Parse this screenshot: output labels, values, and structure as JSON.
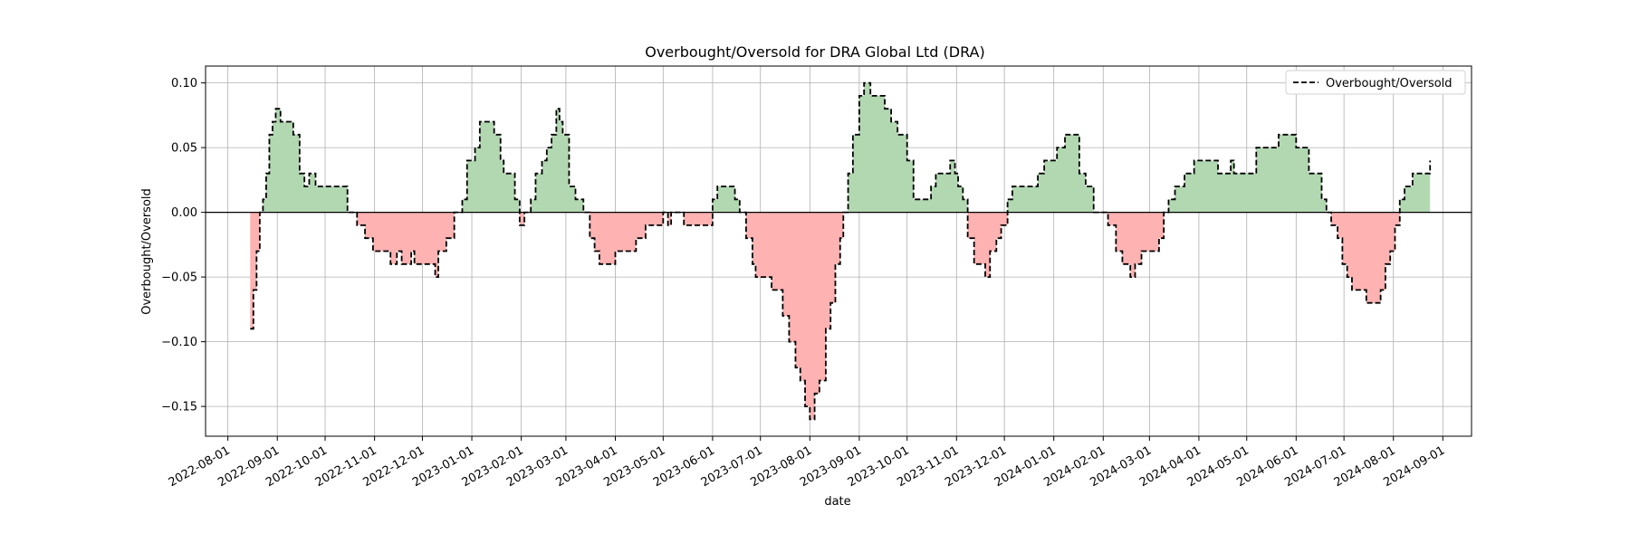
{
  "chart_data": {
    "type": "area",
    "title": "Overbought/Oversold for DRA Global Ltd (DRA)",
    "xlabel": "date",
    "ylabel": "Overbought/Oversold",
    "xlim": [
      "2022-07-18",
      "2024-09-19"
    ],
    "ylim": [
      -0.173,
      0.113
    ],
    "x_ticks": [
      "2022-08-01",
      "2022-09-01",
      "2022-10-01",
      "2022-11-01",
      "2022-12-01",
      "2023-01-01",
      "2023-02-01",
      "2023-03-01",
      "2023-04-01",
      "2023-05-01",
      "2023-06-01",
      "2023-07-01",
      "2023-08-01",
      "2023-09-01",
      "2023-10-01",
      "2023-11-01",
      "2023-12-01",
      "2024-01-01",
      "2024-02-01",
      "2024-03-01",
      "2024-04-01",
      "2024-05-01",
      "2024-06-01",
      "2024-07-01",
      "2024-08-01",
      "2024-09-01"
    ],
    "y_ticks": [
      -0.15,
      -0.1,
      -0.05,
      0.0,
      0.05,
      0.1
    ],
    "y_tick_labels": [
      "−0.15",
      "−0.10",
      "−0.05",
      "0.00",
      "0.05",
      "0.10"
    ],
    "grid": true,
    "legend": {
      "position": "top-right",
      "entries": [
        "Overbought/Oversold"
      ]
    },
    "colors": {
      "line": "#000000",
      "positive_fill": "#b2d8b2",
      "negative_fill": "#ffb2b2",
      "zero_line": "#000000",
      "grid": "#b0b0b0"
    },
    "series": [
      {
        "name": "Overbought/Oversold",
        "style": "dashed",
        "points": [
          [
            "2022-08-15",
            -0.09
          ],
          [
            "2022-08-17",
            -0.06
          ],
          [
            "2022-08-19",
            -0.03
          ],
          [
            "2022-08-21",
            0.0
          ],
          [
            "2022-08-23",
            0.01
          ],
          [
            "2022-08-25",
            0.03
          ],
          [
            "2022-08-27",
            0.06
          ],
          [
            "2022-08-29",
            0.07
          ],
          [
            "2022-08-31",
            0.08
          ],
          [
            "2022-09-03",
            0.07
          ],
          [
            "2022-09-07",
            0.07
          ],
          [
            "2022-09-11",
            0.06
          ],
          [
            "2022-09-15",
            0.03
          ],
          [
            "2022-09-18",
            0.02
          ],
          [
            "2022-09-21",
            0.03
          ],
          [
            "2022-09-25",
            0.02
          ],
          [
            "2022-10-01",
            0.02
          ],
          [
            "2022-10-10",
            0.02
          ],
          [
            "2022-10-13",
            0.02
          ],
          [
            "2022-10-15",
            0.0
          ],
          [
            "2022-10-19",
            0.0
          ],
          [
            "2022-10-21",
            -0.01
          ],
          [
            "2022-10-26",
            -0.02
          ],
          [
            "2022-10-31",
            -0.03
          ],
          [
            "2022-11-08",
            -0.03
          ],
          [
            "2022-11-11",
            -0.04
          ],
          [
            "2022-11-15",
            -0.03
          ],
          [
            "2022-11-18",
            -0.04
          ],
          [
            "2022-11-24",
            -0.03
          ],
          [
            "2022-11-26",
            -0.04
          ],
          [
            "2022-12-01",
            -0.04
          ],
          [
            "2022-12-06",
            -0.04
          ],
          [
            "2022-12-09",
            -0.05
          ],
          [
            "2022-12-11",
            -0.03
          ],
          [
            "2022-12-16",
            -0.02
          ],
          [
            "2022-12-21",
            0.0
          ],
          [
            "2022-12-26",
            0.01
          ],
          [
            "2022-12-29",
            0.04
          ],
          [
            "2023-01-03",
            0.05
          ],
          [
            "2023-01-06",
            0.07
          ],
          [
            "2023-01-12",
            0.07
          ],
          [
            "2023-01-15",
            0.06
          ],
          [
            "2023-01-19",
            0.04
          ],
          [
            "2023-01-21",
            0.03
          ],
          [
            "2023-01-24",
            0.03
          ],
          [
            "2023-01-28",
            0.01
          ],
          [
            "2023-01-31",
            -0.01
          ],
          [
            "2023-02-03",
            0.0
          ],
          [
            "2023-02-07",
            0.01
          ],
          [
            "2023-02-10",
            0.03
          ],
          [
            "2023-02-14",
            0.04
          ],
          [
            "2023-02-17",
            0.05
          ],
          [
            "2023-02-20",
            0.06
          ],
          [
            "2023-02-23",
            0.08
          ],
          [
            "2023-02-25",
            0.07
          ],
          [
            "2023-02-27",
            0.06
          ],
          [
            "2023-03-03",
            0.02
          ],
          [
            "2023-03-07",
            0.01
          ],
          [
            "2023-03-10",
            0.01
          ],
          [
            "2023-03-12",
            0.0
          ],
          [
            "2023-03-16",
            -0.02
          ],
          [
            "2023-03-19",
            -0.03
          ],
          [
            "2023-03-22",
            -0.04
          ],
          [
            "2023-03-28",
            -0.04
          ],
          [
            "2023-04-01",
            -0.03
          ],
          [
            "2023-04-11",
            -0.03
          ],
          [
            "2023-04-14",
            -0.02
          ],
          [
            "2023-04-20",
            -0.01
          ],
          [
            "2023-04-27",
            -0.01
          ],
          [
            "2023-05-01",
            0.0
          ],
          [
            "2023-05-04",
            -0.01
          ],
          [
            "2023-05-06",
            0.0
          ],
          [
            "2023-05-09",
            0.0
          ],
          [
            "2023-05-12",
            0.0
          ],
          [
            "2023-05-14",
            -0.01
          ],
          [
            "2023-05-30",
            -0.01
          ],
          [
            "2023-06-01",
            0.01
          ],
          [
            "2023-06-04",
            0.02
          ],
          [
            "2023-06-12",
            0.02
          ],
          [
            "2023-06-15",
            0.01
          ],
          [
            "2023-06-18",
            0.0
          ],
          [
            "2023-06-22",
            -0.02
          ],
          [
            "2023-06-26",
            -0.04
          ],
          [
            "2023-06-28",
            -0.05
          ],
          [
            "2023-07-05",
            -0.05
          ],
          [
            "2023-07-08",
            -0.06
          ],
          [
            "2023-07-12",
            -0.06
          ],
          [
            "2023-07-15",
            -0.08
          ],
          [
            "2023-07-19",
            -0.1
          ],
          [
            "2023-07-23",
            -0.12
          ],
          [
            "2023-07-26",
            -0.13
          ],
          [
            "2023-07-29",
            -0.15
          ],
          [
            "2023-08-01",
            -0.16
          ],
          [
            "2023-08-04",
            -0.14
          ],
          [
            "2023-08-07",
            -0.13
          ],
          [
            "2023-08-11",
            -0.09
          ],
          [
            "2023-08-14",
            -0.07
          ],
          [
            "2023-08-17",
            -0.04
          ],
          [
            "2023-08-20",
            -0.02
          ],
          [
            "2023-08-22",
            0.0
          ],
          [
            "2023-08-25",
            0.03
          ],
          [
            "2023-08-28",
            0.06
          ],
          [
            "2023-09-01",
            0.09
          ],
          [
            "2023-09-04",
            0.1
          ],
          [
            "2023-09-08",
            0.09
          ],
          [
            "2023-09-14",
            0.09
          ],
          [
            "2023-09-17",
            0.08
          ],
          [
            "2023-09-21",
            0.07
          ],
          [
            "2023-09-25",
            0.06
          ],
          [
            "2023-10-01",
            0.04
          ],
          [
            "2023-10-05",
            0.01
          ],
          [
            "2023-10-13",
            0.01
          ],
          [
            "2023-10-16",
            0.02
          ],
          [
            "2023-10-19",
            0.03
          ],
          [
            "2023-10-25",
            0.03
          ],
          [
            "2023-10-28",
            0.04
          ],
          [
            "2023-10-31",
            0.03
          ],
          [
            "2023-11-02",
            0.02
          ],
          [
            "2023-11-05",
            0.01
          ],
          [
            "2023-11-08",
            -0.02
          ],
          [
            "2023-11-12",
            -0.04
          ],
          [
            "2023-11-17",
            -0.04
          ],
          [
            "2023-11-19",
            -0.05
          ],
          [
            "2023-11-22",
            -0.03
          ],
          [
            "2023-11-26",
            -0.02
          ],
          [
            "2023-11-29",
            -0.01
          ],
          [
            "2023-12-03",
            0.01
          ],
          [
            "2023-12-06",
            0.02
          ],
          [
            "2023-12-18",
            0.02
          ],
          [
            "2023-12-22",
            0.03
          ],
          [
            "2023-12-26",
            0.04
          ],
          [
            "2023-12-29",
            0.04
          ],
          [
            "2024-01-03",
            0.05
          ],
          [
            "2024-01-08",
            0.06
          ],
          [
            "2024-01-14",
            0.06
          ],
          [
            "2024-01-17",
            0.03
          ],
          [
            "2024-01-21",
            0.02
          ],
          [
            "2024-01-26",
            0.0
          ],
          [
            "2024-01-31",
            0.0
          ],
          [
            "2024-02-04",
            -0.01
          ],
          [
            "2024-02-09",
            -0.03
          ],
          [
            "2024-02-13",
            -0.04
          ],
          [
            "2024-02-18",
            -0.05
          ],
          [
            "2024-02-21",
            -0.04
          ],
          [
            "2024-02-25",
            -0.03
          ],
          [
            "2024-03-04",
            -0.03
          ],
          [
            "2024-03-07",
            -0.02
          ],
          [
            "2024-03-10",
            0.0
          ],
          [
            "2024-03-13",
            0.01
          ],
          [
            "2024-03-17",
            0.02
          ],
          [
            "2024-03-23",
            0.03
          ],
          [
            "2024-03-29",
            0.04
          ],
          [
            "2024-04-10",
            0.04
          ],
          [
            "2024-04-13",
            0.03
          ],
          [
            "2024-04-19",
            0.03
          ],
          [
            "2024-04-21",
            0.04
          ],
          [
            "2024-04-23",
            0.03
          ],
          [
            "2024-05-03",
            0.03
          ],
          [
            "2024-05-07",
            0.05
          ],
          [
            "2024-05-17",
            0.05
          ],
          [
            "2024-05-21",
            0.06
          ],
          [
            "2024-05-27",
            0.06
          ],
          [
            "2024-06-01",
            0.05
          ],
          [
            "2024-06-06",
            0.05
          ],
          [
            "2024-06-09",
            0.03
          ],
          [
            "2024-06-14",
            0.03
          ],
          [
            "2024-06-17",
            0.01
          ],
          [
            "2024-06-20",
            0.0
          ],
          [
            "2024-06-23",
            -0.01
          ],
          [
            "2024-06-27",
            -0.02
          ],
          [
            "2024-06-30",
            -0.04
          ],
          [
            "2024-07-03",
            -0.05
          ],
          [
            "2024-07-06",
            -0.06
          ],
          [
            "2024-07-12",
            -0.06
          ],
          [
            "2024-07-15",
            -0.07
          ],
          [
            "2024-07-20",
            -0.07
          ],
          [
            "2024-07-24",
            -0.06
          ],
          [
            "2024-07-27",
            -0.04
          ],
          [
            "2024-07-30",
            -0.03
          ],
          [
            "2024-08-02",
            -0.01
          ],
          [
            "2024-08-05",
            0.01
          ],
          [
            "2024-08-08",
            0.02
          ],
          [
            "2024-08-11",
            0.02
          ],
          [
            "2024-08-13",
            0.03
          ],
          [
            "2024-08-22",
            0.03
          ],
          [
            "2024-08-24",
            0.04
          ]
        ]
      }
    ]
  }
}
